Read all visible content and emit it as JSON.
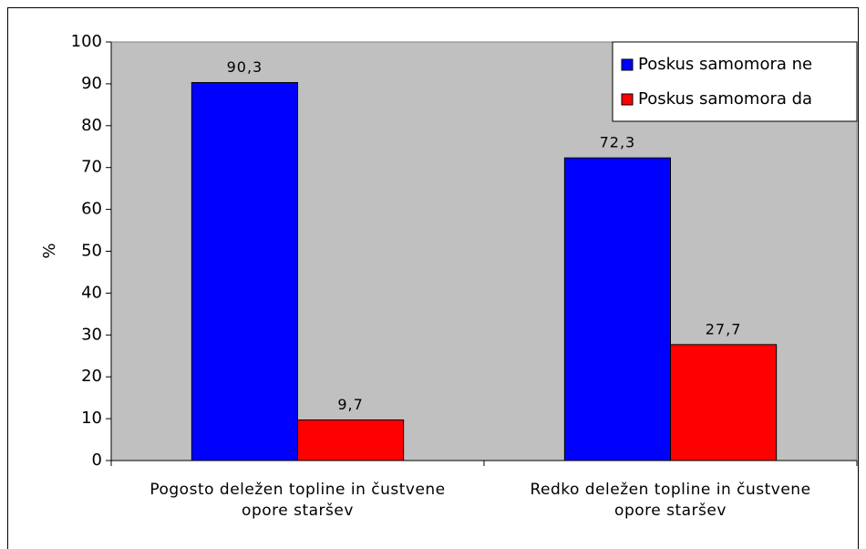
{
  "chart_data": {
    "type": "bar",
    "categories": [
      [
        "Pogosto deležen topline in čustvene",
        "opore staršev"
      ],
      [
        "Redko deležen topline in čustvene",
        "opore staršev"
      ]
    ],
    "series": [
      {
        "name": "Poskus samomora ne",
        "color": "#0000ff",
        "values": [
          90.3,
          72.3
        ],
        "value_labels": [
          "90,3",
          "72,3"
        ]
      },
      {
        "name": "Poskus samomora da",
        "color": "#ff0000",
        "values": [
          9.7,
          27.7
        ],
        "value_labels": [
          "9,7",
          "27,7"
        ]
      }
    ],
    "ylabel": "%",
    "ylim": [
      0,
      100
    ],
    "yticks": [
      0,
      10,
      20,
      30,
      40,
      50,
      60,
      70,
      80,
      90,
      100
    ],
    "grid": false,
    "legend": "upper right"
  }
}
